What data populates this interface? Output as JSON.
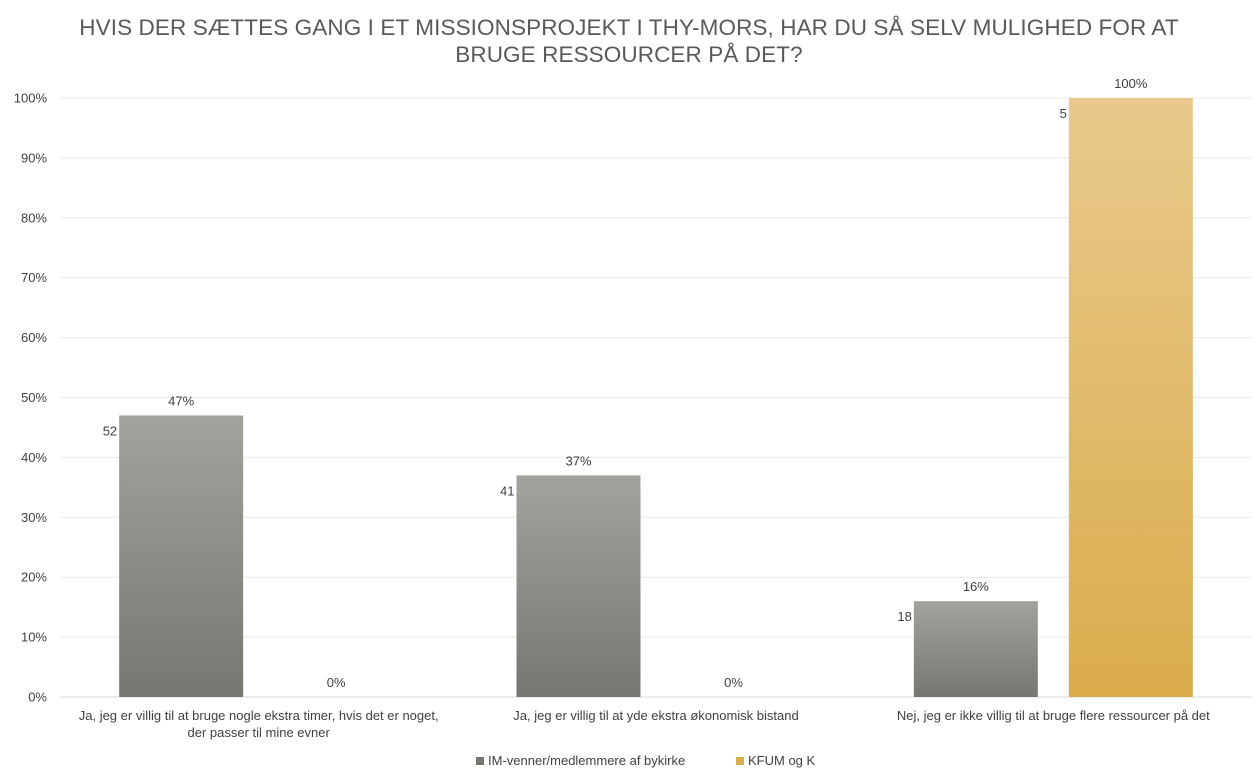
{
  "chart_data": {
    "type": "bar",
    "title_lines": [
      "HVIS DER SÆTTES GANG I ET MISSIONSPROJEKT I THY-MORS, HAR DU SÅ SELV MULIGHED FOR AT",
      "BRUGE RESSOURCER PÅ DET?"
    ],
    "categories": [
      [
        "Ja, jeg er villig til at bruge nogle ekstra timer, hvis det er noget,",
        "der passer til mine evner"
      ],
      [
        "Ja, jeg er villig til at yde ekstra økonomisk bistand"
      ],
      [
        "Nej, jeg er ikke villig til at bruge flere ressourcer på det"
      ]
    ],
    "series": [
      {
        "name": "IM-venner/medlemmere af bykirke",
        "values": [
          47,
          37,
          16
        ],
        "labels": [
          "47%",
          "37%",
          "16%"
        ],
        "counts": [
          "52",
          "41",
          "18"
        ],
        "color_top": "#a3a39d",
        "color_bottom": "#777771"
      },
      {
        "name": "KFUM og K",
        "values": [
          0,
          0,
          100
        ],
        "labels": [
          "0%",
          "0%",
          "100%"
        ],
        "counts": [
          "",
          "",
          "5"
        ],
        "color_top": "#e9c98c",
        "color_bottom": "#d9ad4c"
      }
    ],
    "y_ticks": [
      "0%",
      "10%",
      "20%",
      "30%",
      "40%",
      "50%",
      "60%",
      "70%",
      "80%",
      "90%",
      "100%"
    ],
    "ylim": [
      0,
      100
    ],
    "grid": true,
    "legend_position": "bottom"
  }
}
